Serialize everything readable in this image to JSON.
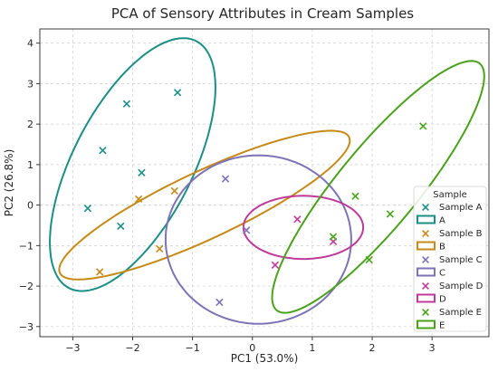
{
  "chart_data": {
    "type": "scatter",
    "title": "PCA of Sensory Attributes in Cream Samples",
    "xlabel": "PC1 (53.0%)",
    "ylabel": "PC2 (26.8%)",
    "xlim": [
      -3.55,
      3.95
    ],
    "ylim": [
      -3.25,
      4.35
    ],
    "xticks": [
      -3,
      -2,
      -1,
      0,
      1,
      2,
      3
    ],
    "yticks": [
      -3,
      -2,
      -1,
      0,
      1,
      2,
      3,
      4
    ],
    "grid": true,
    "legend": {
      "title": "Sample",
      "placement": "lower-right"
    },
    "series": [
      {
        "name": "Sample A",
        "ellipse_name": "A",
        "color": "#1a8f86",
        "points": [
          [
            -2.1,
            2.5
          ],
          [
            -1.25,
            2.78
          ],
          [
            -2.5,
            1.35
          ],
          [
            -1.85,
            0.8
          ],
          [
            -2.75,
            -0.08
          ],
          [
            -2.2,
            -0.52
          ]
        ],
        "ellipse": {
          "center": [
            -2.0,
            1.0
          ],
          "semi_major": 3.25,
          "semi_minor": 1.05,
          "angle_deg": 73
        }
      },
      {
        "name": "Sample B",
        "ellipse_name": "B",
        "color": "#c78a16",
        "points": [
          [
            -1.9,
            0.15
          ],
          [
            -1.3,
            0.35
          ],
          [
            -1.55,
            -1.08
          ],
          [
            -2.55,
            -1.65
          ]
        ],
        "ellipse": {
          "center": [
            -0.8,
            0.0
          ],
          "semi_major": 2.95,
          "semi_minor": 0.75,
          "angle_deg": 36
        }
      },
      {
        "name": "Sample C",
        "ellipse_name": "C",
        "color": "#7d73b6",
        "points": [
          [
            -0.45,
            0.65
          ],
          [
            -0.1,
            -0.62
          ],
          [
            -0.55,
            -2.4
          ]
        ],
        "ellipse": {
          "center": [
            0.1,
            -0.85
          ],
          "semi_major": 2.08,
          "semi_minor": 1.55,
          "angle_deg": 90
        }
      },
      {
        "name": "Sample D",
        "ellipse_name": "D",
        "color": "#c03a9a",
        "points": [
          [
            0.75,
            -0.35
          ],
          [
            0.38,
            -1.48
          ],
          [
            1.35,
            -0.9
          ]
        ],
        "ellipse": {
          "center": [
            0.85,
            -0.55
          ],
          "semi_major": 1.0,
          "semi_minor": 0.78,
          "angle_deg": 0
        }
      },
      {
        "name": "Sample E",
        "ellipse_name": "E",
        "color": "#4aa21a",
        "points": [
          [
            2.85,
            1.95
          ],
          [
            1.72,
            0.22
          ],
          [
            2.3,
            -0.22
          ],
          [
            1.35,
            -0.78
          ],
          [
            1.95,
            -1.35
          ]
        ],
        "ellipse": {
          "center": [
            2.1,
            0.45
          ],
          "semi_major": 3.5,
          "semi_minor": 0.75,
          "angle_deg": 62
        }
      }
    ]
  }
}
